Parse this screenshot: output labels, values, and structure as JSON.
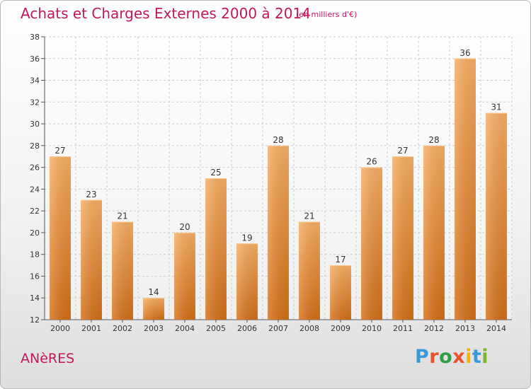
{
  "header": {
    "title": "Achats et Charges Externes 2000 à 2014",
    "subtitle": "(en milliers d'€)"
  },
  "footer": {
    "commune": "ANèRES",
    "logo": "Proxiti",
    "logo_colors": [
      "#3a9ad9",
      "#e8532d",
      "#2f9e44",
      "#e8532d",
      "#f4b400",
      "#3a9ad9",
      "#7bb32e"
    ]
  },
  "colors": {
    "bar_light": "#f6a95a",
    "bar_dark": "#d9731a",
    "text_accent": "#c2185b",
    "grid": "#cccccc"
  },
  "chart_data": {
    "type": "bar",
    "title": "Achats et Charges Externes 2000 à 2014",
    "categories": [
      "2000",
      "2001",
      "2002",
      "2003",
      "2004",
      "2005",
      "2006",
      "2007",
      "2008",
      "2009",
      "2010",
      "2011",
      "2012",
      "2013",
      "2014"
    ],
    "values": [
      27,
      23,
      21,
      14,
      20,
      25,
      19,
      28,
      21,
      17,
      26,
      27,
      28,
      36,
      31
    ],
    "ylim": [
      12,
      38
    ],
    "yticks": [
      12,
      14,
      16,
      18,
      20,
      22,
      24,
      26,
      28,
      30,
      32,
      34,
      36,
      38
    ],
    "grid": true
  }
}
